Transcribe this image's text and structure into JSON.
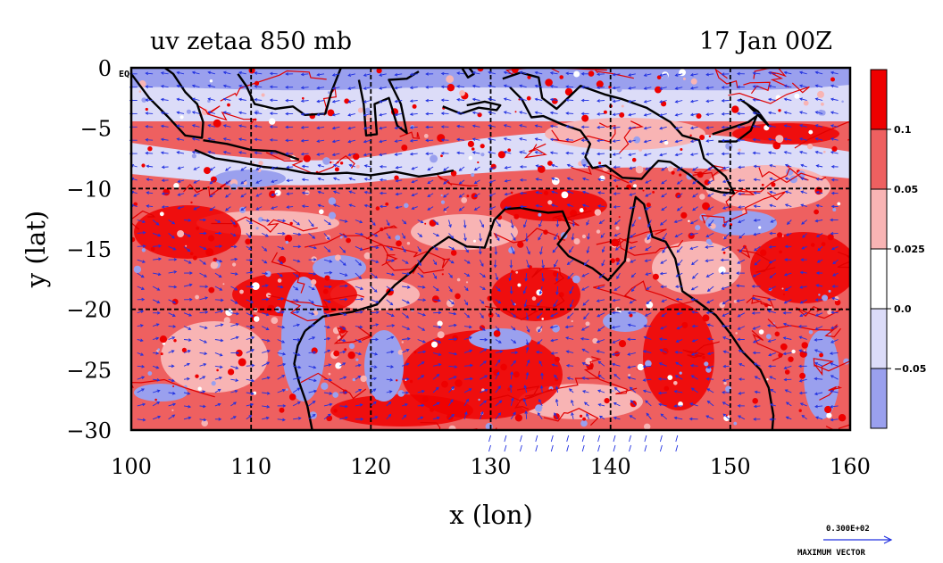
{
  "title_left": "uv zetaa 850 mb",
  "title_right": "17 Jan 00Z",
  "map": {
    "xlabel": "x (lon)",
    "ylabel": "y (lat)",
    "lon_range": [
      100,
      160
    ],
    "lat_range": [
      -30,
      0
    ],
    "x_ticks": [
      "100",
      "110",
      "120",
      "130",
      "140",
      "150",
      "160"
    ],
    "y_ticks": [
      "0",
      "−5",
      "−10",
      "−15",
      "−20",
      "−25",
      "−30"
    ],
    "grid_lon": [
      110,
      120,
      130,
      140,
      150
    ],
    "grid_lat": [
      -10,
      -20
    ],
    "equator_label": "EQ",
    "land_outline": {
      "australia": [
        [
          114.5,
          -21.8
        ],
        [
          116,
          -20.6
        ],
        [
          118.5,
          -20.2
        ],
        [
          120.5,
          -19.6
        ],
        [
          122,
          -18
        ],
        [
          123.5,
          -16.8
        ],
        [
          125,
          -15
        ],
        [
          126.5,
          -14
        ],
        [
          128,
          -14.8
        ],
        [
          129.5,
          -14.9
        ],
        [
          130.3,
          -12.6
        ],
        [
          131.2,
          -11.7
        ],
        [
          132.5,
          -11.6
        ],
        [
          133.5,
          -11.8
        ],
        [
          134.8,
          -12
        ],
        [
          136,
          -11.9
        ],
        [
          136.6,
          -13.3
        ],
        [
          135.6,
          -14.6
        ],
        [
          136.5,
          -15.6
        ],
        [
          138.5,
          -16.6
        ],
        [
          139.8,
          -17.6
        ],
        [
          141.2,
          -16
        ],
        [
          141.6,
          -13.2
        ],
        [
          142.1,
          -10.7
        ],
        [
          142.8,
          -11.3
        ],
        [
          143.5,
          -14
        ],
        [
          144.6,
          -14.4
        ],
        [
          145.4,
          -15.8
        ],
        [
          146,
          -18.5
        ],
        [
          147.3,
          -19.4
        ],
        [
          148.8,
          -20.5
        ],
        [
          150,
          -22
        ],
        [
          151,
          -23.5
        ],
        [
          152.5,
          -25
        ],
        [
          153.2,
          -26.5
        ],
        [
          153.6,
          -28.8
        ],
        [
          153.5,
          -30
        ]
      ],
      "australia_west": [
        [
          114.5,
          -21.8
        ],
        [
          113.9,
          -23
        ],
        [
          113.6,
          -24.5
        ],
        [
          114,
          -26
        ],
        [
          114.7,
          -28
        ],
        [
          115.1,
          -30
        ]
      ],
      "sumatra": [
        [
          100,
          -0.5
        ],
        [
          101.5,
          -2.5
        ],
        [
          103,
          -4
        ],
        [
          104.5,
          -5.6
        ],
        [
          105.9,
          -5.8
        ],
        [
          106,
          -4.5
        ],
        [
          105.5,
          -3
        ],
        [
          104.5,
          -2
        ],
        [
          103.5,
          -0.5
        ],
        [
          102.8,
          0
        ]
      ],
      "java_timor": [
        [
          105.3,
          -6.8
        ],
        [
          107,
          -7.5
        ],
        [
          109,
          -7.8
        ],
        [
          111,
          -8.2
        ],
        [
          113,
          -8.4
        ],
        [
          114.5,
          -8.7
        ],
        [
          116,
          -8.8
        ],
        [
          118,
          -8.7
        ],
        [
          120,
          -8.9
        ],
        [
          122,
          -8.6
        ],
        [
          124,
          -9
        ],
        [
          125.5,
          -8.8
        ],
        [
          126.9,
          -8.5
        ]
      ],
      "java_north": [
        [
          106,
          -6
        ],
        [
          108,
          -6.3
        ],
        [
          110,
          -6.8
        ],
        [
          112,
          -6.9
        ],
        [
          114,
          -7.6
        ]
      ],
      "borneo_south": [
        [
          108.9,
          -0.5
        ],
        [
          109.6,
          -1.5
        ],
        [
          110.3,
          -3
        ],
        [
          112,
          -3.4
        ],
        [
          113.5,
          -3.2
        ],
        [
          114.5,
          -3.9
        ],
        [
          116.2,
          -3.8
        ],
        [
          116.7,
          -2
        ],
        [
          117.5,
          0
        ]
      ],
      "sulawesi": [
        [
          119,
          -1
        ],
        [
          119.4,
          -3
        ],
        [
          119.6,
          -5.6
        ],
        [
          120.5,
          -5.5
        ],
        [
          120.3,
          -3
        ],
        [
          121.5,
          -2.5
        ],
        [
          122.2,
          -4.8
        ],
        [
          123,
          -5.4
        ],
        [
          122.5,
          -3
        ],
        [
          121.5,
          -1
        ],
        [
          123,
          -0.9
        ],
        [
          124,
          -0.3
        ]
      ],
      "seram_buru": [
        [
          126,
          -3.2
        ],
        [
          127.5,
          -3.8
        ],
        [
          129,
          -3.3
        ],
        [
          130.5,
          -3.5
        ],
        [
          130.8,
          -3.1
        ],
        [
          129.5,
          -2.8
        ],
        [
          128,
          -3.1
        ]
      ],
      "halmahera": [
        [
          127.6,
          0
        ],
        [
          128.1,
          -0.8
        ],
        [
          128.6,
          -0.5
        ],
        [
          128.2,
          0
        ]
      ],
      "new_guinea": [
        [
          131,
          -0.9
        ],
        [
          132.5,
          -0.4
        ],
        [
          134,
          -0.8
        ],
        [
          134.3,
          -2.5
        ],
        [
          135.5,
          -3.4
        ],
        [
          137.5,
          -1.5
        ],
        [
          139.5,
          -2.2
        ],
        [
          141,
          -2.6
        ],
        [
          143,
          -3.3
        ],
        [
          145,
          -4.5
        ],
        [
          146,
          -5.6
        ],
        [
          147.4,
          -6
        ],
        [
          147.8,
          -7.5
        ],
        [
          149.6,
          -9
        ],
        [
          150.3,
          -10.4
        ],
        [
          149.2,
          -10.3
        ],
        [
          148,
          -10
        ],
        [
          146.5,
          -8.8
        ],
        [
          145,
          -7.8
        ],
        [
          144,
          -7.7
        ],
        [
          143.3,
          -8.4
        ],
        [
          142.6,
          -9.2
        ],
        [
          141,
          -9.1
        ],
        [
          139.6,
          -8.1
        ],
        [
          138.5,
          -8.3
        ],
        [
          137.9,
          -7.4
        ],
        [
          138.3,
          -6.3
        ],
        [
          137.5,
          -5.2
        ],
        [
          136,
          -4.7
        ],
        [
          134.4,
          -4
        ],
        [
          133.4,
          -4.1
        ],
        [
          132.6,
          -2.6
        ],
        [
          131.6,
          -1.6
        ]
      ],
      "new_britain": [
        [
          148.5,
          -5.5
        ],
        [
          150,
          -5
        ],
        [
          151.5,
          -4.5
        ],
        [
          152.2,
          -4
        ],
        [
          151.7,
          -5.2
        ],
        [
          150.5,
          -6.1
        ],
        [
          149,
          -6.1
        ]
      ],
      "new_ireland": [
        [
          150.8,
          -2.6
        ],
        [
          152.3,
          -3.6
        ],
        [
          153.2,
          -4.8
        ],
        [
          152.7,
          -4.3
        ],
        [
          151.4,
          -3
        ]
      ]
    }
  },
  "colorbar": {
    "labels": [
      "0.1",
      "0.05",
      "0.025",
      "0.0",
      "−0.05"
    ],
    "colors": [
      "#ee0000",
      "#ee6060",
      "#f8b4b4",
      "#ffffff",
      "#dcdcf8",
      "#9aa0ee"
    ]
  },
  "vector_key": {
    "value": "0.300E+02",
    "label": "MAXIMUM VECTOR"
  },
  "colors": {
    "strong_pos": "#ee0000",
    "pos": "#ee6060",
    "weak_pos": "#f8b4b4",
    "neg": "#dcdcf8",
    "strong_neg": "#9aa0ee",
    "contour": "#e00000",
    "vector": "#2030e0",
    "land": "#000000"
  }
}
